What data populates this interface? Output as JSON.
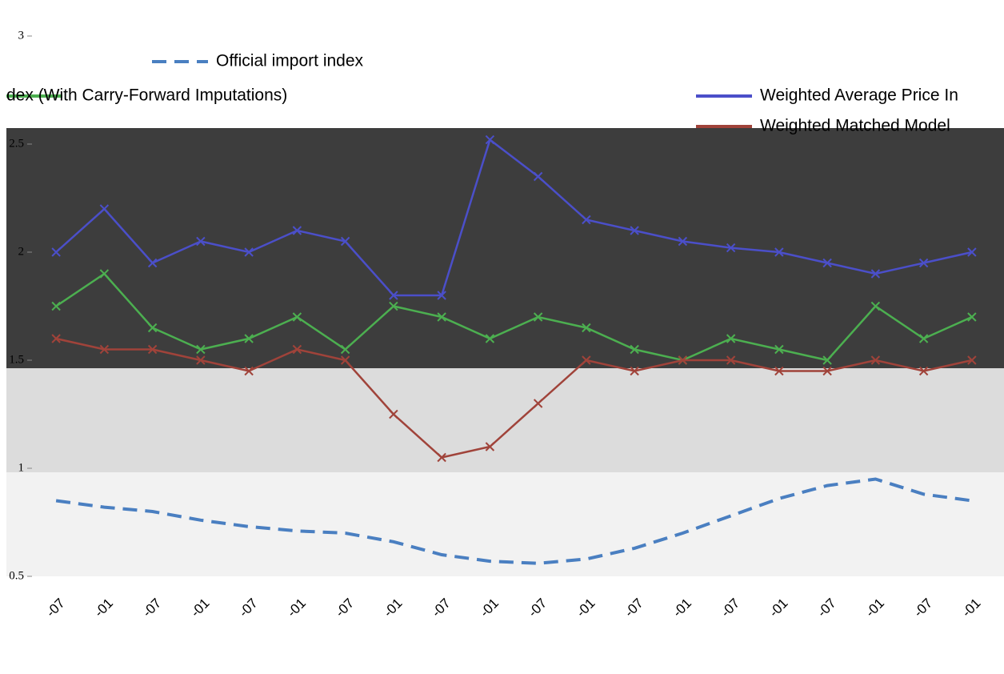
{
  "chart_data": {
    "type": "line",
    "ylim": [
      0.5,
      3
    ],
    "yticks": [
      0.5,
      1,
      1.5,
      2,
      2.5,
      3
    ],
    "grid": false,
    "categories": [
      "-07",
      "-01",
      "-07",
      "-01",
      "-07",
      "-01",
      "-07",
      "-01",
      "-07",
      "-01",
      "-07",
      "-01",
      "-07",
      "-01",
      "-07",
      "-01",
      "-07",
      "-01",
      "-07",
      "-01"
    ],
    "series": [
      {
        "name": "Official import index",
        "color": "#4a7fc1",
        "dashed": true,
        "marker": false,
        "values": [
          0.85,
          0.82,
          0.8,
          0.76,
          0.73,
          0.71,
          0.7,
          0.66,
          0.6,
          0.57,
          0.56,
          0.58,
          0.63,
          0.7,
          0.78,
          0.86,
          0.92,
          0.95,
          0.88,
          0.85
        ]
      },
      {
        "name": "dex (With Carry-Forward Imputations)",
        "color": "#4caf50",
        "dashed": false,
        "marker": true,
        "values": [
          1.75,
          1.9,
          1.65,
          1.55,
          1.6,
          1.7,
          1.55,
          1.75,
          1.7,
          1.6,
          1.7,
          1.65,
          1.55,
          1.5,
          1.6,
          1.55,
          1.5,
          1.75,
          1.6,
          1.7
        ]
      },
      {
        "name": "Weighted Average Price In",
        "color": "#4b4fc9",
        "dashed": false,
        "marker": true,
        "values": [
          2.0,
          2.2,
          1.95,
          2.05,
          2.0,
          2.1,
          2.05,
          1.8,
          1.8,
          2.52,
          2.35,
          2.15,
          2.1,
          2.05,
          2.02,
          2.0,
          1.95,
          1.9,
          1.95,
          2.0
        ]
      },
      {
        "name": "Weighted Matched Model",
        "color": "#a0433a",
        "dashed": false,
        "marker": true,
        "values": [
          1.6,
          1.55,
          1.55,
          1.5,
          1.45,
          1.55,
          1.5,
          1.25,
          1.05,
          1.1,
          1.3,
          1.5,
          1.45,
          1.5,
          1.5,
          1.45,
          1.45,
          1.5,
          1.45,
          1.5
        ]
      }
    ]
  }
}
